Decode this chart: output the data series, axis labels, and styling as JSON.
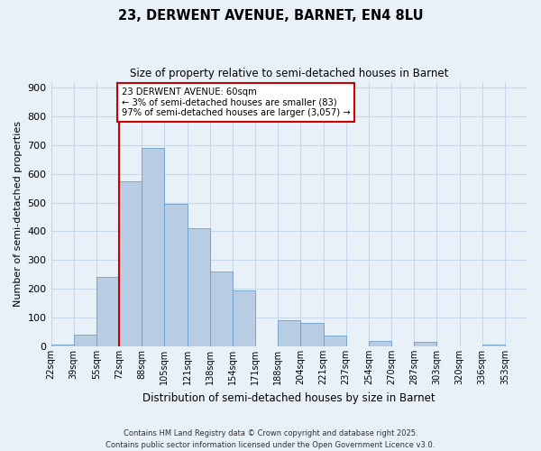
{
  "title": "23, DERWENT AVENUE, BARNET, EN4 8LU",
  "subtitle": "Size of property relative to semi-detached houses in Barnet",
  "xlabel": "Distribution of semi-detached houses by size in Barnet",
  "ylabel": "Number of semi-detached properties",
  "bin_labels": [
    "22sqm",
    "39sqm",
    "55sqm",
    "72sqm",
    "88sqm",
    "105sqm",
    "121sqm",
    "138sqm",
    "154sqm",
    "171sqm",
    "188sqm",
    "204sqm",
    "221sqm",
    "237sqm",
    "254sqm",
    "270sqm",
    "287sqm",
    "303sqm",
    "320sqm",
    "336sqm",
    "353sqm"
  ],
  "bar_heights": [
    5,
    42,
    240,
    575,
    690,
    495,
    410,
    260,
    195,
    0,
    92,
    83,
    37,
    0,
    18,
    0,
    15,
    0,
    0,
    5,
    0
  ],
  "bar_color": "#b8cce4",
  "bar_edge_color": "#6d9ecc",
  "grid_color": "#c8d8ec",
  "background_color": "#e8f0f8",
  "vline_x_index": 2,
  "vline_color": "#cc0000",
  "annotation_text": "23 DERWENT AVENUE: 60sqm\n← 3% of semi-detached houses are smaller (83)\n97% of semi-detached houses are larger (3,057) →",
  "annotation_box_color": "white",
  "annotation_box_edge_color": "#cc0000",
  "ylim": [
    0,
    920
  ],
  "yticks": [
    0,
    100,
    200,
    300,
    400,
    500,
    600,
    700,
    800,
    900
  ],
  "footnote_line1": "Contains HM Land Registry data © Crown copyright and database right 2025.",
  "footnote_line2": "Contains public sector information licensed under the Open Government Licence v3.0."
}
